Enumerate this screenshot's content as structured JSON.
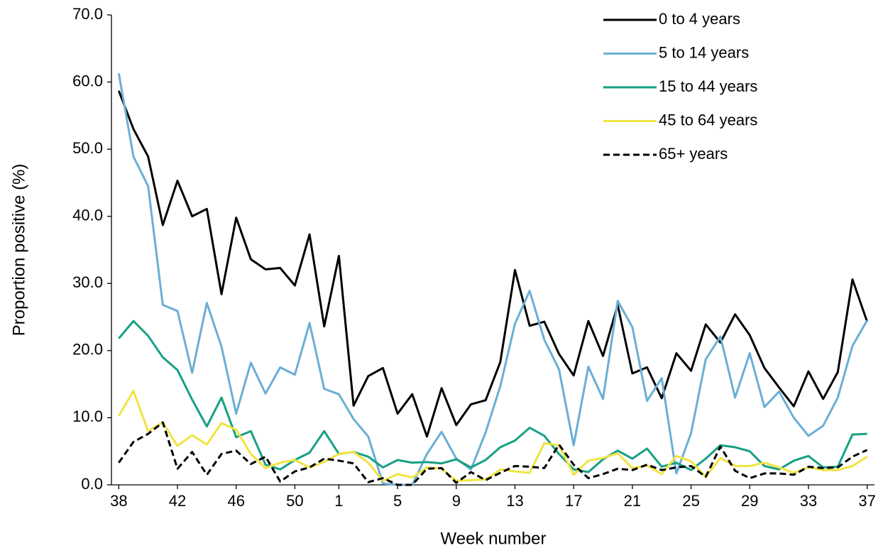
{
  "chart_data": {
    "type": "line",
    "x_label": "Week number",
    "y_label": "Proportion positive (%)",
    "categories": [
      "38",
      null,
      null,
      null,
      "42",
      null,
      null,
      null,
      "46",
      null,
      null,
      null,
      "50",
      null,
      null,
      "1",
      null,
      null,
      null,
      "5",
      null,
      null,
      null,
      "9",
      null,
      null,
      null,
      "13",
      null,
      null,
      null,
      "17",
      null,
      null,
      null,
      "21",
      null,
      null,
      null,
      "25",
      null,
      null,
      null,
      "29",
      null,
      null,
      null,
      "33",
      null,
      null,
      null,
      "37"
    ],
    "ylim": [
      0,
      70
    ],
    "yticks": [
      {
        "value": 0,
        "label": "0.0"
      },
      {
        "value": 10,
        "label": "10.0"
      },
      {
        "value": 20,
        "label": "20.0"
      },
      {
        "value": 30,
        "label": "30.0"
      },
      {
        "value": 40,
        "label": "40.0"
      },
      {
        "value": 50,
        "label": "50.0"
      },
      {
        "value": 60,
        "label": "60.0"
      },
      {
        "value": 70,
        "label": "70.0"
      }
    ],
    "grid": false,
    "legend": "top-right",
    "series": [
      {
        "name": "0 to 4 years",
        "color": "#000000",
        "dash": false,
        "values": [
          58.7,
          53.0,
          48.9,
          38.7,
          45.3,
          40.0,
          41.1,
          28.4,
          39.8,
          33.6,
          32.1,
          32.3,
          29.7,
          37.3,
          23.6,
          34.1,
          11.8,
          16.2,
          17.4,
          10.6,
          13.5,
          7.2,
          14.4,
          8.9,
          12.0,
          12.6,
          18.3,
          32.0,
          23.7,
          24.3,
          19.5,
          16.3,
          24.4,
          19.2,
          26.8,
          16.6,
          17.5,
          12.9,
          19.6,
          17.0,
          23.9,
          21.2,
          25.4,
          22.3,
          17.4,
          14.5,
          11.7,
          16.9,
          12.8,
          16.8,
          30.6,
          24.3
        ]
      },
      {
        "name": "5 to 14 years",
        "color": "#6baed6",
        "dash": false,
        "values": [
          61.3,
          48.9,
          44.5,
          26.8,
          25.9,
          16.7,
          27.1,
          20.6,
          10.6,
          18.2,
          13.6,
          17.5,
          16.4,
          24.1,
          14.3,
          13.5,
          9.8,
          7.2,
          0.2,
          0.0,
          0.0,
          4.6,
          7.9,
          3.9,
          2.3,
          7.8,
          14.7,
          24.0,
          28.9,
          21.6,
          17.2,
          5.9,
          17.6,
          12.8,
          27.4,
          23.5,
          12.5,
          15.9,
          1.7,
          7.7,
          18.7,
          22.1,
          13.0,
          19.6,
          11.6,
          13.9,
          10.0,
          7.3,
          8.8,
          13.0,
          20.7,
          24.5
        ]
      },
      {
        "name": "15 to 44 years",
        "color": "#16a085",
        "dash": false,
        "values": [
          21.8,
          24.4,
          22.2,
          19.0,
          17.1,
          12.7,
          8.7,
          13.0,
          7.1,
          8.0,
          3.0,
          2.3,
          3.7,
          4.8,
          8.0,
          4.6,
          4.9,
          4.2,
          2.6,
          3.7,
          3.3,
          3.4,
          3.2,
          3.8,
          2.6,
          3.7,
          5.6,
          6.6,
          8.5,
          7.3,
          4.6,
          2.3,
          1.9,
          3.8,
          5.1,
          3.9,
          5.4,
          2.7,
          3.3,
          2.2,
          3.9,
          5.9,
          5.6,
          5.0,
          2.8,
          2.3,
          3.6,
          4.3,
          2.6,
          2.7,
          7.5,
          7.6
        ]
      },
      {
        "name": "45 to 64 years",
        "color": "#f0e442",
        "dash": false,
        "values": [
          10.3,
          14.0,
          8.0,
          9.3,
          5.8,
          7.4,
          6.0,
          9.2,
          8.2,
          4.6,
          2.5,
          3.3,
          3.7,
          2.6,
          3.4,
          4.6,
          4.9,
          3.3,
          0.6,
          1.6,
          1.1,
          2.6,
          2.4,
          0.6,
          0.7,
          0.8,
          2.3,
          2.0,
          1.8,
          6.2,
          5.9,
          1.5,
          3.6,
          4.0,
          4.7,
          2.5,
          2.9,
          1.6,
          4.3,
          3.5,
          1.2,
          4.0,
          2.8,
          2.8,
          3.3,
          2.6,
          1.8,
          2.6,
          2.2,
          2.2,
          2.8,
          4.2
        ]
      },
      {
        "name": "65+ years",
        "color": "#000000",
        "dash": true,
        "values": [
          3.3,
          6.4,
          7.6,
          9.3,
          2.4,
          4.9,
          1.5,
          4.6,
          5.1,
          3.1,
          4.2,
          0.5,
          2.0,
          2.6,
          3.9,
          3.6,
          3.2,
          0.4,
          1.0,
          0.0,
          0.0,
          2.4,
          2.5,
          0.3,
          1.9,
          0.7,
          1.8,
          2.8,
          2.7,
          2.5,
          6.0,
          3.0,
          1.0,
          1.6,
          2.4,
          2.2,
          3.0,
          2.2,
          2.6,
          2.8,
          1.2,
          5.7,
          2.1,
          1.0,
          1.7,
          1.7,
          1.5,
          2.7,
          2.5,
          2.6,
          4.2,
          5.2
        ]
      }
    ]
  }
}
